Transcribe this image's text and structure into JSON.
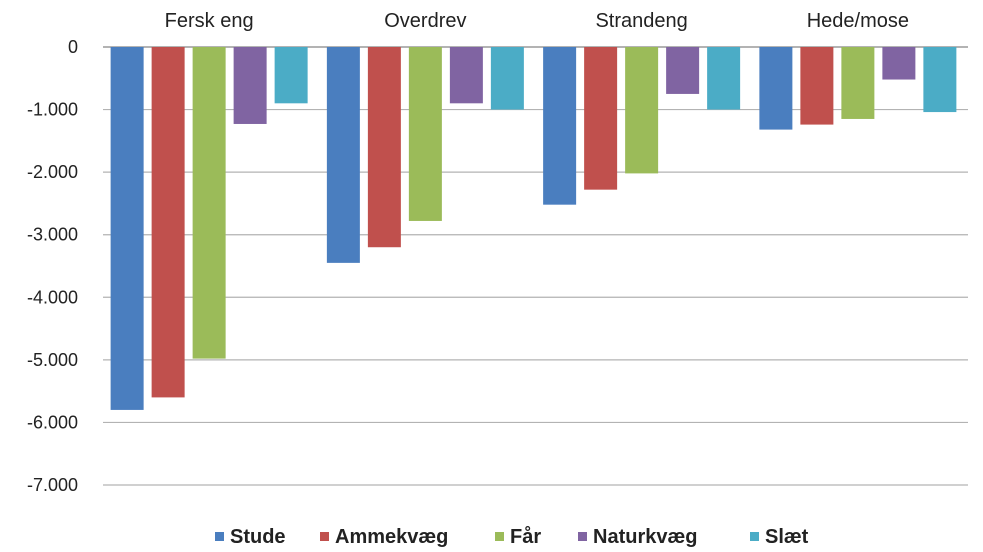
{
  "chart_data": {
    "type": "bar",
    "categories": [
      "Fersk eng",
      "Overdrev",
      "Strandeng",
      "Hede/mose"
    ],
    "series": [
      {
        "name": "Stude",
        "values": [
          -5800,
          -3450,
          -2520,
          -1320
        ]
      },
      {
        "name": "Ammekvæg",
        "values": [
          -5600,
          -3200,
          -2280,
          -1240
        ]
      },
      {
        "name": "Får",
        "values": [
          -4980,
          -2780,
          -2020,
          -1150
        ]
      },
      {
        "name": "Naturkvæg",
        "values": [
          -1230,
          -900,
          -750,
          -520
        ]
      },
      {
        "name": "Slæt",
        "values": [
          -900,
          -1000,
          -1000,
          -1040
        ]
      }
    ],
    "colors": [
      "#4a7ebf",
      "#c0504d",
      "#9bbb59",
      "#8064a2",
      "#4bacc6"
    ],
    "ylim": [
      -7000,
      0
    ],
    "yticks": [
      0,
      -1000,
      -2000,
      -3000,
      -4000,
      -5000,
      -6000,
      -7000
    ],
    "ytick_labels": [
      "0",
      "-1.000",
      "-2.000",
      "-3.000",
      "-4.000",
      "-5.000",
      "-6.000",
      "-7.000"
    ],
    "category_label_position": "top",
    "grid": true,
    "legend": "bottom"
  }
}
